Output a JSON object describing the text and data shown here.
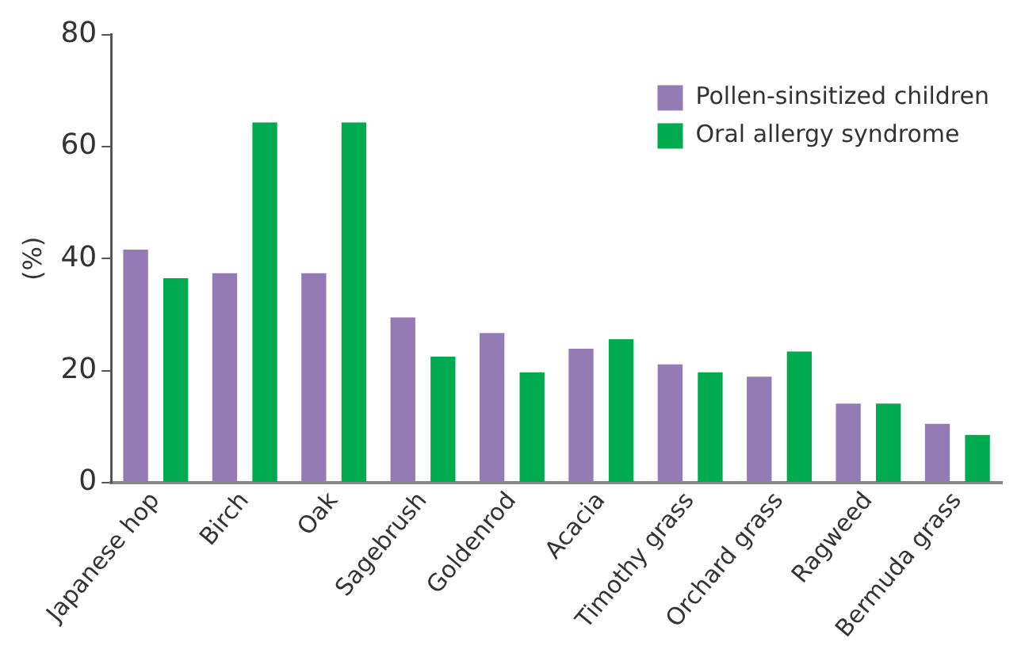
{
  "chart_data": {
    "type": "bar",
    "ylabel": "(%)",
    "categories": [
      "Japanese hop",
      "Birch",
      "Oak",
      "Sagebrush",
      "Goldenrod",
      "Acacia",
      "Timothy grass",
      "Orchard grass",
      "Ragweed",
      "Bermuda grass"
    ],
    "series": [
      {
        "name": "Pollen-sinsitized children",
        "color": "#957bb5",
        "values": [
          41.6,
          37.4,
          37.4,
          29.5,
          26.7,
          23.9,
          21.1,
          18.9,
          14.1,
          10.5
        ]
      },
      {
        "name": "Oral allergy syndrome",
        "color": "#00aa4f",
        "values": [
          36.5,
          64.3,
          64.3,
          22.5,
          19.7,
          25.6,
          19.7,
          23.4,
          14.1,
          8.5
        ]
      }
    ],
    "ylim": [
      0,
      80
    ],
    "yticks": [
      0,
      20,
      40,
      60,
      80
    ],
    "grid": false,
    "legend": "top right"
  }
}
